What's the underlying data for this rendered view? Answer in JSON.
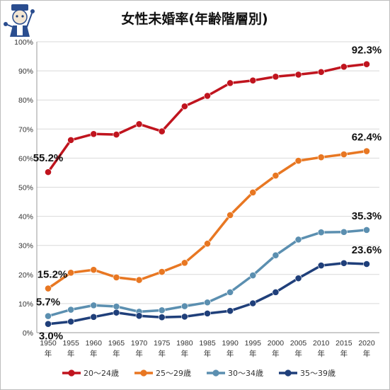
{
  "chart_data": {
    "type": "line",
    "title": "女性未婚率(年齢階層別)",
    "xlabel": "",
    "ylabel": "",
    "x": [
      "1950",
      "1955",
      "1960",
      "1965",
      "1970",
      "1975",
      "1980",
      "1985",
      "1990",
      "1995",
      "2000",
      "2005",
      "2010",
      "2015",
      "2020"
    ],
    "x_suffix": "年",
    "ylim": [
      0,
      100
    ],
    "yticks": [
      "0%",
      "10%",
      "20%",
      "30%",
      "40%",
      "50%",
      "60%",
      "70%",
      "80%",
      "90%",
      "100%"
    ],
    "grid": true,
    "legend_position": "bottom",
    "series": [
      {
        "name": "20～24歳",
        "color": "#c0141e",
        "values": [
          55.2,
          66.2,
          68.3,
          68.1,
          71.7,
          69.2,
          77.8,
          81.4,
          85.8,
          86.7,
          88.0,
          88.7,
          89.6,
          91.4,
          92.3
        ]
      },
      {
        "name": "25～29歳",
        "color": "#e87722",
        "values": [
          15.2,
          20.6,
          21.6,
          19.0,
          18.1,
          20.9,
          24.0,
          30.6,
          40.4,
          48.2,
          54.0,
          59.1,
          60.3,
          61.3,
          62.4
        ]
      },
      {
        "name": "30～34歳",
        "color": "#5b8fb0",
        "values": [
          5.7,
          7.9,
          9.4,
          9.0,
          7.2,
          7.7,
          9.1,
          10.4,
          13.9,
          19.7,
          26.6,
          32.0,
          34.5,
          34.6,
          35.3
        ]
      },
      {
        "name": "35～39歳",
        "color": "#1f3f7a",
        "values": [
          3.0,
          3.8,
          5.4,
          6.9,
          5.8,
          5.3,
          5.5,
          6.6,
          7.5,
          10.1,
          13.9,
          18.7,
          23.1,
          23.9,
          23.6
        ]
      }
    ],
    "annotations": [
      {
        "text": "55.2%"
      },
      {
        "text": "92.3%"
      },
      {
        "text": "15.2%"
      },
      {
        "text": "62.4%"
      },
      {
        "text": "5.7%"
      },
      {
        "text": "35.3%"
      },
      {
        "text": "3.0%"
      },
      {
        "text": "23.6%"
      }
    ]
  },
  "mascot_icon": "maid-mascot-icon"
}
